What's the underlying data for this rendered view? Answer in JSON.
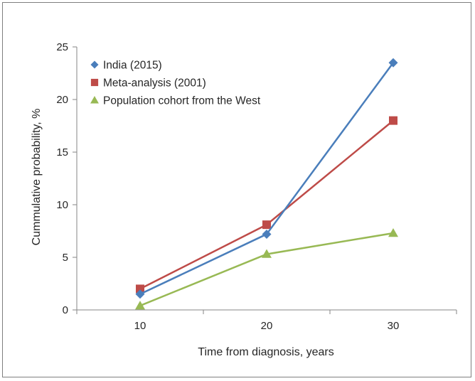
{
  "chart_data": {
    "type": "line",
    "title": "",
    "xlabel": "Time from diagnosis, years",
    "ylabel": "Cummulative probability, %",
    "categories": [
      "10",
      "20",
      "30"
    ],
    "x": [
      10,
      20,
      30
    ],
    "ylim": [
      0,
      25
    ],
    "yticks": [
      "0",
      "5",
      "10",
      "15",
      "20",
      "25"
    ],
    "grid": false,
    "legend_position": "top-left",
    "series": [
      {
        "name": "India (2015)",
        "values": [
          1.5,
          7.2,
          23.5
        ],
        "color": "#4a7ebb",
        "marker": "diamond"
      },
      {
        "name": "Meta-analysis (2001)",
        "values": [
          2.0,
          8.1,
          18.0
        ],
        "color": "#be4b48",
        "marker": "square"
      },
      {
        "name": "Population cohort from the West",
        "values": [
          0.4,
          5.3,
          7.3
        ],
        "color": "#98b954",
        "marker": "triangle"
      }
    ]
  }
}
